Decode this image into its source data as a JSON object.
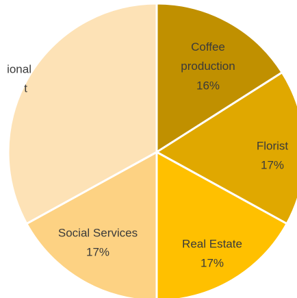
{
  "chart_data": {
    "type": "pie",
    "categories": [
      "Coffee production",
      "Florist",
      "Real Estate",
      "Social Services",
      null
    ],
    "values": [
      16,
      17,
      17,
      17,
      33
    ],
    "value_labels": [
      "16%",
      "17%",
      "17%",
      "17%",
      null
    ],
    "colors": [
      "#c09000",
      "#e0a800",
      "#ffc000",
      "#fdd283",
      "#fde2b6"
    ],
    "annotations": [
      "ional",
      "t"
    ]
  }
}
